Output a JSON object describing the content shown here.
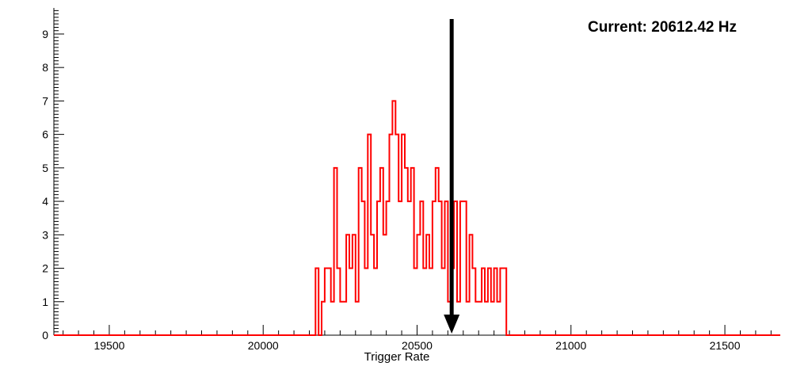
{
  "chart": {
    "current_label": "Current: 20612.42 Hz",
    "xlabel": "Trigger Rate"
  },
  "chart_data": {
    "type": "bar",
    "style": "step-histogram",
    "title": "",
    "xlabel": "Trigger Rate",
    "ylabel": "",
    "grid": false,
    "legend": false,
    "xlim": [
      19320,
      21680
    ],
    "ylim": [
      0,
      9.78
    ],
    "x_major_ticks": [
      19500,
      20000,
      20500,
      21000,
      21500
    ],
    "x_minor_step": 50,
    "y_major_ticks": [
      0,
      1,
      2,
      3,
      4,
      5,
      6,
      7,
      8,
      9
    ],
    "y_minor_step": 0.1,
    "series_color": "#ff0000",
    "bin_start": 20170,
    "bin_width": 10,
    "counts": [
      2,
      0,
      1,
      2,
      2,
      1,
      5,
      2,
      1,
      1,
      3,
      2,
      3,
      1,
      5,
      4,
      2,
      6,
      3,
      2,
      4,
      5,
      3,
      4,
      6,
      7,
      6,
      4,
      6,
      5,
      4,
      5,
      2,
      3,
      4,
      2,
      3,
      2,
      4,
      5,
      4,
      2,
      4,
      1,
      2,
      4,
      1,
      4,
      4,
      1,
      3,
      2,
      1,
      1,
      2,
      1,
      2,
      1,
      2,
      1,
      2,
      2,
      0
    ],
    "annotation": {
      "type": "arrow-down",
      "x": 20612.42,
      "value_hz": 20612.42,
      "label": "Current: 20612.42 Hz",
      "color": "#000000"
    }
  }
}
